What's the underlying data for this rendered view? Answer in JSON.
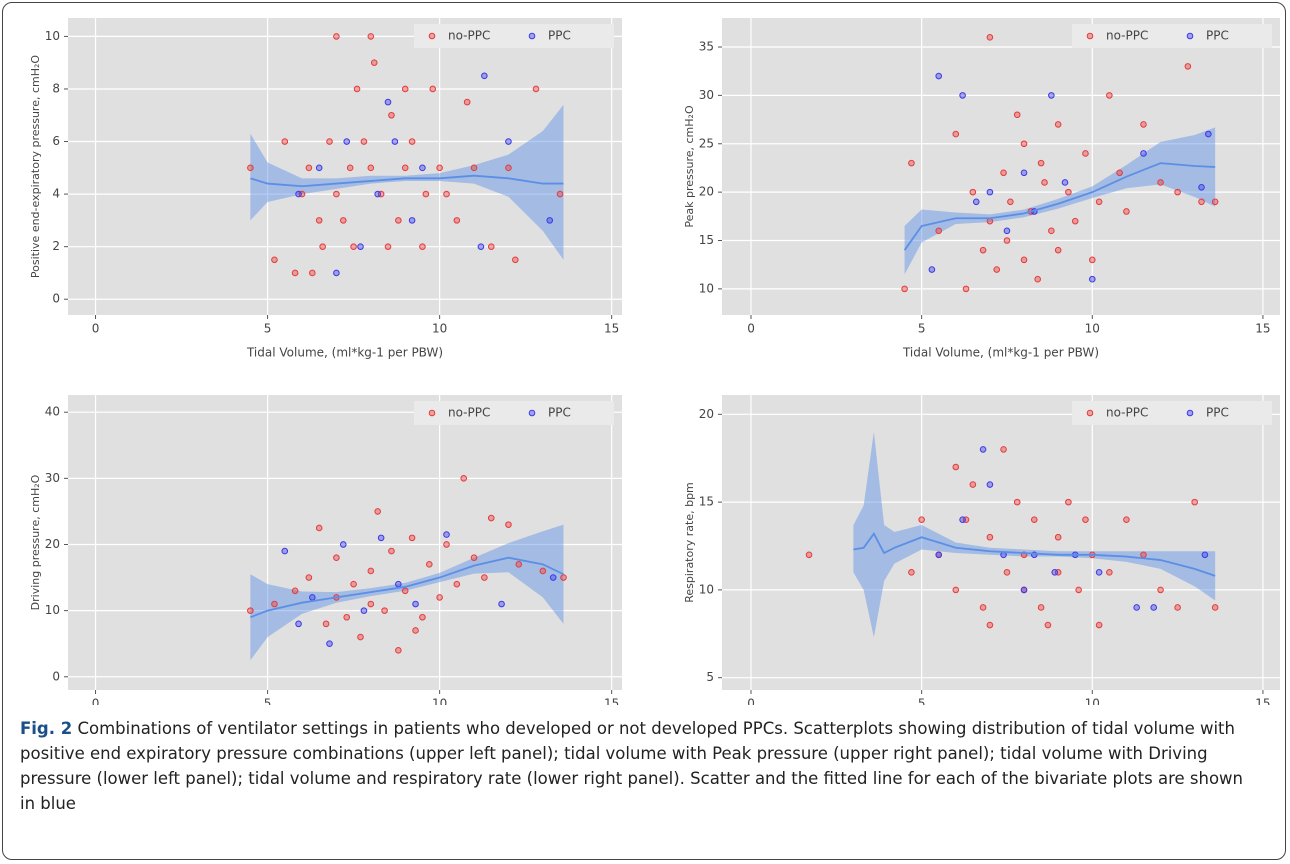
{
  "chart_data": [
    {
      "type": "scatter",
      "xlabel": "Tidal Volume, (ml*kg-1 per PBW)",
      "ylabel": "Positive end-expiratory pressure, cmH₂O",
      "xlim": [
        -0.8,
        15.3
      ],
      "ylim": [
        -0.6,
        10.7
      ],
      "xticks": [
        0,
        5,
        10,
        15
      ],
      "yticks": [
        0,
        2,
        4,
        6,
        8,
        10
      ],
      "grid": true,
      "legend": "top-right",
      "series": [
        {
          "name": "no-PPC",
          "color": "#e83a3a",
          "x": [
            4.5,
            5.2,
            5.5,
            5.8,
            6,
            6.2,
            6.3,
            6.5,
            6.6,
            6.8,
            7,
            7,
            7.2,
            7.4,
            7.5,
            7.6,
            7.8,
            8,
            8,
            8.1,
            8.3,
            8.5,
            8.6,
            8.8,
            9,
            9,
            9.2,
            9.5,
            9.8,
            10,
            10.2,
            10.5,
            10.8,
            11,
            11.5,
            12,
            12.2,
            12.8,
            13.5,
            9.6
          ],
          "values": [
            5,
            1.5,
            6,
            1,
            4,
            5,
            1,
            3,
            2,
            6,
            10,
            4,
            3,
            5,
            2,
            8,
            6,
            10,
            5,
            9,
            4,
            2,
            7,
            3,
            8,
            5,
            6,
            2,
            8,
            5,
            4,
            3,
            7.5,
            5,
            2,
            5,
            1.5,
            8,
            4,
            4
          ]
        },
        {
          "name": "PPC",
          "color": "#3a3ae8",
          "x": [
            5.9,
            6.5,
            7,
            7.3,
            7.7,
            8.2,
            8.5,
            8.7,
            9.2,
            9.5,
            11.3,
            11.2,
            12,
            13.2
          ],
          "values": [
            4,
            5,
            1,
            6,
            2,
            4,
            7.5,
            6,
            3,
            5,
            8.5,
            2,
            6,
            3
          ]
        }
      ],
      "fit": {
        "color": "#5b8fe6",
        "x": [
          4.5,
          5,
          6,
          7,
          8,
          9,
          10,
          11,
          12,
          13,
          13.6
        ],
        "values": [
          4.6,
          4.4,
          4.3,
          4.4,
          4.5,
          4.6,
          4.6,
          4.7,
          4.6,
          4.4,
          4.4
        ],
        "lower": [
          3,
          3.7,
          4,
          4.2,
          4.4,
          4.5,
          4.5,
          4.4,
          3.9,
          2.6,
          1.5
        ],
        "upper": [
          6.3,
          5.2,
          4.6,
          4.6,
          4.7,
          4.7,
          4.8,
          5.1,
          5.5,
          6.4,
          7.4
        ]
      }
    },
    {
      "type": "scatter",
      "xlabel": "Tidal Volume, (ml*kg-1 per PBW)",
      "ylabel": "Peak pressure, cmH₂O",
      "xlim": [
        -0.85,
        15.5
      ],
      "ylim": [
        7.3,
        38
      ],
      "xticks": [
        0,
        5,
        10,
        15
      ],
      "yticks": [
        10,
        15,
        20,
        25,
        30,
        35
      ],
      "grid": true,
      "legend": "top-right",
      "series": [
        {
          "name": "no-PPC",
          "color": "#e83a3a",
          "x": [
            4.5,
            4.7,
            5.5,
            6,
            6.3,
            6.5,
            6.8,
            7,
            7,
            7.2,
            7.4,
            7.5,
            7.6,
            7.8,
            8,
            8,
            8.2,
            8.4,
            8.6,
            8.8,
            9,
            9,
            9.3,
            9.5,
            9.8,
            10,
            10.2,
            10.5,
            10.8,
            11,
            11.5,
            12,
            12.5,
            12.8,
            13.2,
            13.6,
            8.5
          ],
          "values": [
            10,
            23,
            16,
            26,
            10,
            20,
            14,
            36,
            17,
            12,
            22,
            15,
            19,
            28,
            25,
            13,
            18,
            11,
            21,
            16,
            27,
            14,
            20,
            17,
            24,
            13,
            19,
            30,
            22,
            18,
            27,
            21,
            20,
            33,
            19,
            19,
            23
          ]
        },
        {
          "name": "PPC",
          "color": "#3a3ae8",
          "x": [
            5.5,
            5.3,
            6.2,
            6.6,
            7,
            7.5,
            8,
            8.3,
            8.8,
            9.2,
            10,
            11.5,
            13.2,
            13.4
          ],
          "values": [
            32,
            12,
            30,
            19,
            20,
            16,
            22,
            18,
            30,
            21,
            11,
            24,
            20.5,
            26
          ]
        }
      ],
      "fit": {
        "color": "#5b8fe6",
        "x": [
          4.5,
          5,
          6,
          7,
          8,
          9,
          10,
          11,
          12,
          13,
          13.6
        ],
        "values": [
          14,
          16.5,
          17.3,
          17.3,
          17.8,
          18.8,
          20,
          21.6,
          23,
          22.7,
          22.6
        ],
        "lower": [
          11.5,
          14.8,
          16.7,
          16.9,
          17.4,
          18.3,
          19.4,
          20.4,
          20.8,
          19.5,
          18.5
        ],
        "upper": [
          16.5,
          18.2,
          17.9,
          17.7,
          18.2,
          19.3,
          20.6,
          22.8,
          25.2,
          25.9,
          26.7
        ]
      }
    },
    {
      "type": "scatter",
      "xlabel": "Tidal Volume, (ml*kg-1 per PBW)",
      "ylabel": "Driving pressure, cmH₂O",
      "xlim": [
        -0.8,
        15.3
      ],
      "ylim": [
        -2,
        42.6
      ],
      "xticks": [
        0,
        5,
        10,
        15
      ],
      "yticks": [
        0,
        10,
        20,
        30,
        40
      ],
      "grid": true,
      "legend": "top-right",
      "series": [
        {
          "name": "no-PPC",
          "color": "#e83a3a",
          "x": [
            4.5,
            5.2,
            5.8,
            6.2,
            6.5,
            6.7,
            7,
            7,
            7.3,
            7.5,
            7.7,
            8,
            8,
            8.2,
            8.4,
            8.6,
            8.8,
            9,
            9.2,
            9.5,
            9.7,
            10,
            10.2,
            10.5,
            10.7,
            11,
            11.3,
            11.5,
            12,
            12.3,
            13,
            13.6,
            9.3
          ],
          "values": [
            10,
            11,
            13,
            15,
            22.5,
            8,
            12,
            18,
            9,
            14,
            6,
            16,
            11,
            25,
            10,
            19,
            4,
            13,
            21,
            9,
            17,
            12,
            20,
            14,
            30,
            18,
            15,
            24,
            23,
            17,
            16,
            15,
            7
          ]
        },
        {
          "name": "PPC",
          "color": "#3a3ae8",
          "x": [
            5.5,
            5.9,
            6.3,
            6.8,
            7.2,
            7.8,
            8.3,
            8.8,
            9.3,
            10.2,
            11.8,
            13.3
          ],
          "values": [
            19,
            8,
            12,
            5,
            20,
            10,
            21,
            14,
            11,
            21.5,
            11,
            15
          ]
        }
      ],
      "fit": {
        "color": "#5b8fe6",
        "x": [
          4.5,
          5,
          6,
          7,
          8,
          9,
          10,
          11,
          12,
          13,
          13.6
        ],
        "values": [
          9,
          10,
          11.2,
          12,
          12.8,
          13.6,
          15,
          16.8,
          18,
          17,
          15.5
        ],
        "lower": [
          2.5,
          6,
          9.5,
          11.2,
          12.2,
          13,
          14.3,
          15.6,
          15.8,
          12,
          8
        ],
        "upper": [
          15.5,
          14,
          12.9,
          12.8,
          13.4,
          14.2,
          15.7,
          18,
          20.2,
          22,
          23
        ]
      }
    },
    {
      "type": "scatter",
      "xlabel": "Tidal Volume, (ml*kg-1 per PBW)",
      "ylabel": "Respiratory rate, bpm",
      "xlim": [
        -0.85,
        15.5
      ],
      "ylim": [
        4.3,
        21.1
      ],
      "xticks": [
        0,
        5,
        10,
        15
      ],
      "yticks": [
        5,
        10,
        15,
        20
      ],
      "grid": true,
      "legend": "top-right",
      "series": [
        {
          "name": "no-PPC",
          "color": "#e83a3a",
          "x": [
            1.7,
            4.7,
            5,
            5.5,
            6,
            6,
            6.3,
            6.5,
            6.8,
            7,
            7,
            7.4,
            7.5,
            7.8,
            8,
            8,
            8.3,
            8.5,
            8.7,
            9,
            9,
            9.3,
            9.6,
            10,
            10.2,
            10.5,
            11,
            11.5,
            12,
            12.5,
            13,
            13.6,
            9.8
          ],
          "values": [
            12,
            11,
            14,
            12,
            17,
            10,
            14,
            16,
            9,
            13,
            8,
            18,
            11,
            15,
            10,
            12,
            14,
            9,
            8,
            13,
            11,
            15,
            10,
            12,
            8,
            11,
            14,
            12,
            10,
            9,
            15,
            9,
            14
          ]
        },
        {
          "name": "PPC",
          "color": "#3a3ae8",
          "x": [
            5.5,
            6.2,
            6.8,
            7,
            7.4,
            8,
            8.3,
            8.9,
            9.5,
            10.2,
            11.3,
            11.8,
            13.3
          ],
          "values": [
            12,
            14,
            18,
            16,
            12,
            10,
            12,
            11,
            12,
            11,
            9,
            9,
            12
          ]
        }
      ],
      "fit": {
        "color": "#5b8fe6",
        "x": [
          3,
          3.3,
          3.6,
          3.9,
          4.2,
          5,
          6,
          7,
          8,
          9,
          10,
          11,
          12,
          13,
          13.6
        ],
        "values": [
          12.3,
          12.4,
          13.2,
          12.1,
          12.4,
          13,
          12.4,
          12.2,
          12.1,
          12,
          12,
          11.9,
          11.7,
          11.2,
          10.8
        ],
        "lower": [
          11,
          10,
          7.3,
          10.5,
          11.5,
          12.3,
          12.1,
          12,
          11.9,
          11.9,
          11.8,
          11.6,
          11.2,
          10.2,
          9.4
        ],
        "upper": [
          13.7,
          14.8,
          19,
          13.7,
          13.3,
          13.7,
          12.7,
          12.4,
          12.3,
          12.2,
          12.2,
          12.2,
          12.2,
          12.2,
          12.2
        ]
      }
    }
  ],
  "caption": {
    "label": "Fig. 2",
    "text": "Combinations of ventilator settings in patients who developed or not developed PPCs. Scatterplots showing distribution of tidal volume with positive end expiratory pressure combinations (upper left panel); tidal volume with Peak pressure (upper right panel); tidal volume with Driving pressure (lower left panel); tidal volume and respiratory rate (lower right panel). Scatter and the fitted line for each of the bivariate plots are shown in blue"
  }
}
